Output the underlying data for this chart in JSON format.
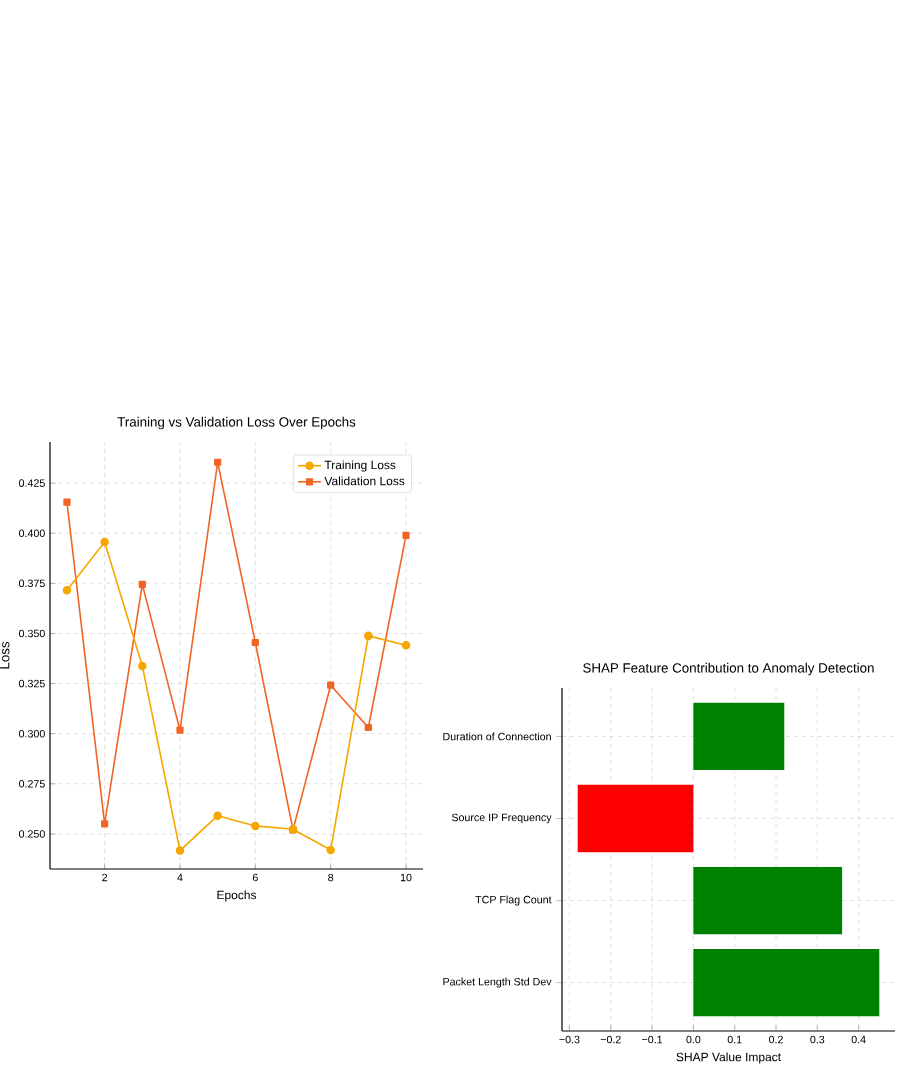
{
  "chart_data": [
    {
      "type": "line",
      "title": "Training vs Validation Loss Over Epochs",
      "xlabel": "Epochs",
      "ylabel": "Loss",
      "x": [
        1,
        2,
        3,
        4,
        5,
        6,
        7,
        8,
        9,
        10
      ],
      "series": [
        {
          "name": "Training Loss",
          "color": "#f7a600",
          "marker": "circle",
          "values": [
            0.3715,
            0.3956,
            0.3338,
            0.2417,
            0.2591,
            0.254,
            0.2523,
            0.242,
            0.3488,
            0.3441
          ]
        },
        {
          "name": "Validation Loss",
          "color": "#f06424",
          "marker": "square",
          "values": [
            0.4155,
            0.255,
            0.3745,
            0.3018,
            0.4354,
            0.3455,
            0.252,
            0.3242,
            0.3031,
            0.3989
          ]
        }
      ],
      "xlim": [
        0.55,
        10.45
      ],
      "ylim": [
        0.2325,
        0.4455
      ],
      "xticks": [
        2,
        4,
        6,
        8,
        10
      ],
      "yticks": [
        {
          "value": 0.25,
          "label": "0.250"
        },
        0.275,
        {
          "value": 0.3,
          "label": "0.300"
        },
        0.325,
        {
          "value": 0.35,
          "label": "0.350"
        },
        0.375,
        {
          "value": 0.4,
          "label": "0.400"
        },
        0.425
      ],
      "grid": true,
      "legend": "top right"
    },
    {
      "type": "bar",
      "orientation": "horizontal",
      "title": "SHAP Feature Contribution to Anomaly Detection",
      "xlabel": "SHAP Value Impact",
      "categories": [
        "Duration of Connection",
        "Source IP Frequency",
        "TCP Flag Count",
        "Packet Length Std Dev"
      ],
      "values": [
        0.22,
        -0.28,
        0.36,
        0.45
      ],
      "colors": [
        "#008000",
        "#ff0000",
        "#008000",
        "#008000"
      ],
      "xlim": [
        -0.318,
        0.488
      ],
      "xticks": [
        {
          "value": -0.3,
          "label": "−0.3"
        },
        {
          "value": -0.2,
          "label": "−0.2"
        },
        {
          "value": -0.1,
          "label": "−0.1"
        },
        {
          "value": 0,
          "label": "0.0"
        },
        0.1,
        0.2,
        0.3,
        0.4
      ],
      "grid": true
    }
  ]
}
